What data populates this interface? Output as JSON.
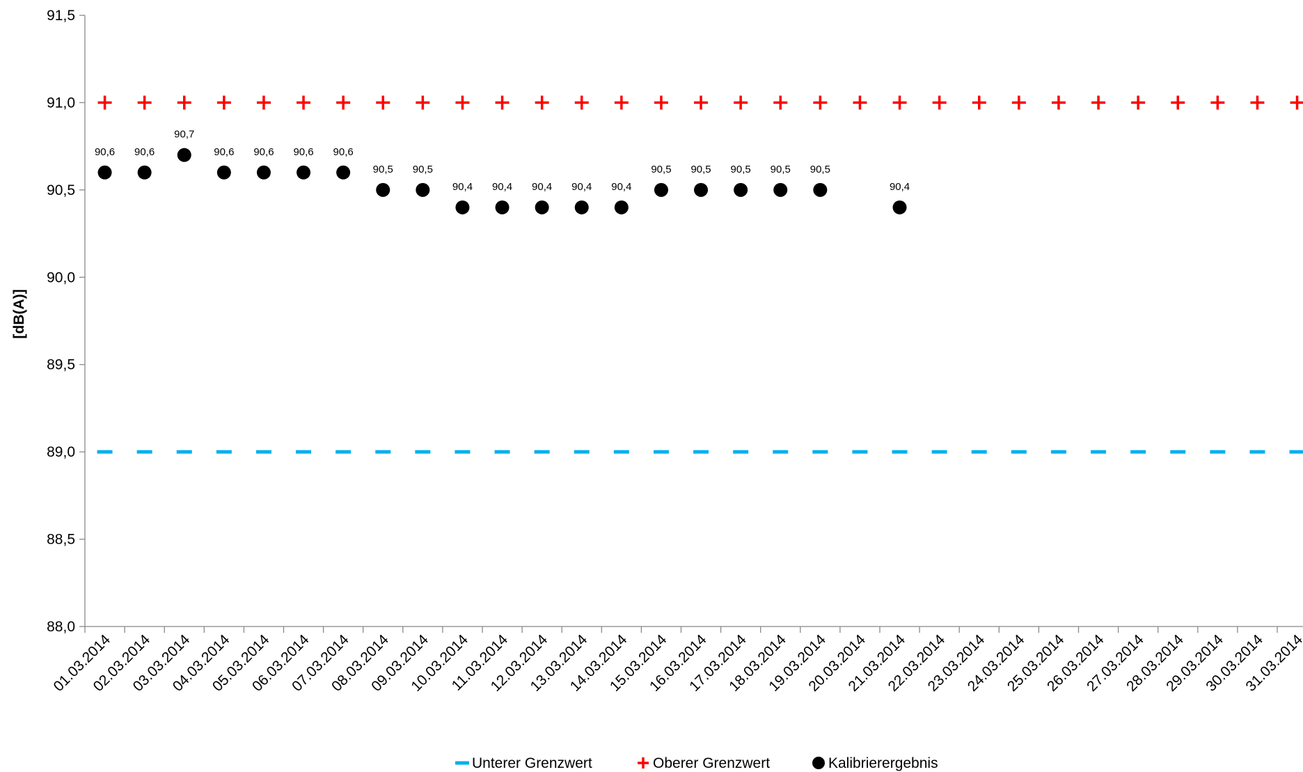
{
  "chart_data": {
    "type": "scatter",
    "title": "",
    "xlabel": "",
    "ylabel": "[dB(A)]",
    "ylim": [
      88.0,
      91.5
    ],
    "y_ticks": [
      "88,0",
      "88,5",
      "89,0",
      "89,5",
      "90,0",
      "90,5",
      "91,0",
      "91,5"
    ],
    "y_tick_values": [
      88.0,
      88.5,
      89.0,
      89.5,
      90.0,
      90.5,
      91.0,
      91.5
    ],
    "categories": [
      "01.03.2014",
      "02.03.2014",
      "03.03.2014",
      "04.03.2014",
      "05.03.2014",
      "06.03.2014",
      "07.03.2014",
      "08.03.2014",
      "09.03.2014",
      "10.03.2014",
      "11.03.2014",
      "12.03.2014",
      "13.03.2014",
      "14.03.2014",
      "15.03.2014",
      "16.03.2014",
      "17.03.2014",
      "18.03.2014",
      "19.03.2014",
      "20.03.2014",
      "21.03.2014",
      "22.03.2014",
      "23.03.2014",
      "24.03.2014",
      "25.03.2014",
      "26.03.2014",
      "27.03.2014",
      "28.03.2014",
      "29.03.2014",
      "30.03.2014",
      "31.03.2014"
    ],
    "grid": false,
    "legend_position": "bottom",
    "series": [
      {
        "name": "Unterer Grenzwert",
        "marker": "dash",
        "color": "#00B0F0",
        "values": [
          89.0,
          89.0,
          89.0,
          89.0,
          89.0,
          89.0,
          89.0,
          89.0,
          89.0,
          89.0,
          89.0,
          89.0,
          89.0,
          89.0,
          89.0,
          89.0,
          89.0,
          89.0,
          89.0,
          89.0,
          89.0,
          89.0,
          89.0,
          89.0,
          89.0,
          89.0,
          89.0,
          89.0,
          89.0,
          89.0,
          89.0
        ]
      },
      {
        "name": "Oberer Grenzwert",
        "marker": "plus",
        "color": "#FF0000",
        "values": [
          91.0,
          91.0,
          91.0,
          91.0,
          91.0,
          91.0,
          91.0,
          91.0,
          91.0,
          91.0,
          91.0,
          91.0,
          91.0,
          91.0,
          91.0,
          91.0,
          91.0,
          91.0,
          91.0,
          91.0,
          91.0,
          91.0,
          91.0,
          91.0,
          91.0,
          91.0,
          91.0,
          91.0,
          91.0,
          91.0,
          91.0
        ]
      },
      {
        "name": "Kalibrierergebnis",
        "marker": "circle",
        "color": "#000000",
        "values": [
          90.6,
          90.6,
          90.7,
          90.6,
          90.6,
          90.6,
          90.6,
          90.5,
          90.5,
          90.4,
          90.4,
          90.4,
          90.4,
          90.4,
          90.5,
          90.5,
          90.5,
          90.5,
          90.5,
          null,
          90.4,
          null,
          null,
          null,
          null,
          null,
          null,
          null,
          null,
          null,
          null
        ],
        "data_labels": [
          "90,6",
          "90,6",
          "90,7",
          "90,6",
          "90,6",
          "90,6",
          "90,6",
          "90,5",
          "90,5",
          "90,4",
          "90,4",
          "90,4",
          "90,4",
          "90,4",
          "90,5",
          "90,5",
          "90,5",
          "90,5",
          "90,5",
          null,
          "90,4",
          null,
          null,
          null,
          null,
          null,
          null,
          null,
          null,
          null,
          null
        ]
      }
    ]
  }
}
